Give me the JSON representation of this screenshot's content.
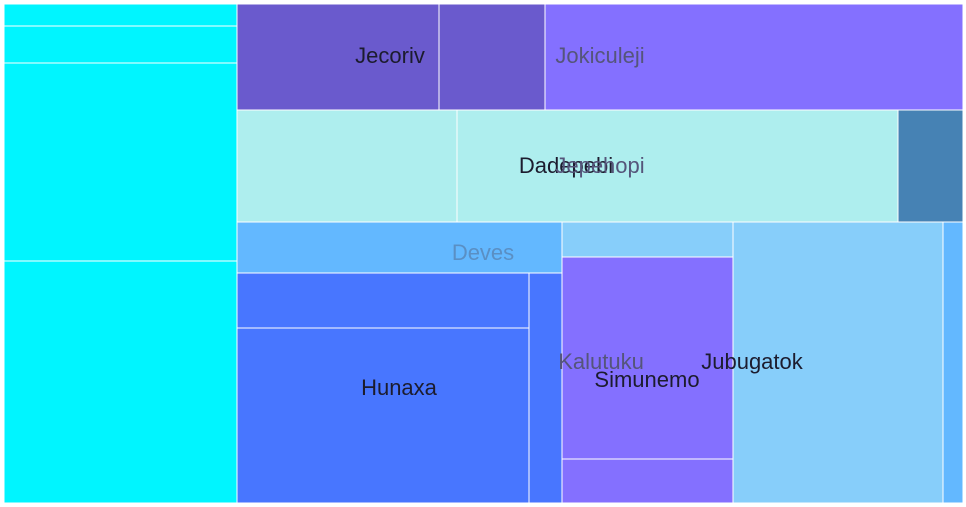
{
  "chart_data": {
    "type": "treemap",
    "title": "",
    "colors": {
      "cyan": "#00f5ff",
      "violet_dark": "#6a5acd",
      "violet_light": "#8470ff",
      "turquoise_pale": "#aeeeee",
      "steel_blue": "#4682b4",
      "sky_blue": "#63b8ff",
      "royal_blue": "#4876ff",
      "light_sky": "#87cefa",
      "label_dark": "#1c1c2e",
      "label_muted": "#55557a",
      "label_faint": "#5a8fc4"
    },
    "nodes": [
      {
        "id": "cyan-1",
        "label": "",
        "value": 3.6,
        "color": "cyan"
      },
      {
        "id": "cyan-2",
        "label": "",
        "value": 5.9,
        "color": "cyan"
      },
      {
        "id": "cyan-3",
        "label": "",
        "value": 32.5,
        "color": "cyan"
      },
      {
        "id": "cyan-4",
        "label": "",
        "value": 39.8,
        "color": "cyan"
      },
      {
        "id": "jecoriv",
        "label": "Jecoriv",
        "value": 16.4,
        "color": "violet_dark",
        "label_color": "label_dark"
      },
      {
        "id": "jokiculeji-a",
        "label": "Jokiculeji",
        "value": 8.0,
        "color": "violet_dark",
        "label_color": "label_muted"
      },
      {
        "id": "jokiculeji-b",
        "label": "",
        "value": 30.3,
        "color": "violet_light"
      },
      {
        "id": "dadepebi",
        "label": "Dadepebi",
        "value": 17.7,
        "color": "turquoise_pale",
        "label_color": "label_dark"
      },
      {
        "id": "jepehopi",
        "label": "Jepehopi",
        "value": 34.1,
        "color": "turquoise_pale",
        "label_color": "label_muted"
      },
      {
        "id": "steel-block",
        "label": "",
        "value": 5.3,
        "color": "steel_blue"
      },
      {
        "id": "deves",
        "label": "Deves",
        "value": 11.7,
        "color": "sky_blue",
        "label_color": "label_faint"
      },
      {
        "id": "hunaxa-top",
        "label": "",
        "value": 11.2,
        "color": "royal_blue"
      },
      {
        "id": "hunaxa",
        "label": "Hunaxa",
        "value": 36.4,
        "color": "royal_blue",
        "label_color": "label_dark"
      },
      {
        "id": "kalutuku",
        "label": "Kalutuku",
        "value": 5.8,
        "color": "royal_blue",
        "label_color": "label_muted"
      },
      {
        "id": "sky-top",
        "label": "",
        "value": 4.3,
        "color": "light_sky"
      },
      {
        "id": "simunemo",
        "label": "Simunemo",
        "value": 24.5,
        "color": "violet_light",
        "label_color": "label_dark"
      },
      {
        "id": "violet-bottom",
        "label": "",
        "value": 4.9,
        "color": "violet_light"
      },
      {
        "id": "jubugatok",
        "label": "Jubugatok",
        "value": 43.1,
        "color": "light_sky",
        "label_color": "label_dark"
      },
      {
        "id": "sky-strip",
        "label": "",
        "value": 3.9,
        "color": "sky_blue"
      }
    ]
  }
}
